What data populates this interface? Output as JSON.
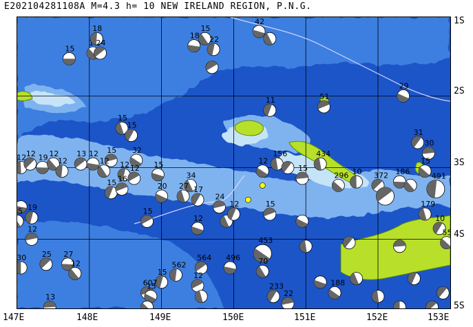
{
  "header": {
    "title": "E202104281108A M=4.3 h= 10 NEW IRELAND REGION, P.N.G."
  },
  "axes": {
    "latitudes": [
      "1S",
      "2S",
      "3S",
      "4S",
      "5S"
    ],
    "longitudes": [
      "147E",
      "148E",
      "149E",
      "150E",
      "151E",
      "152E",
      "153E"
    ]
  },
  "colors": {
    "deep_ocean": "#1c55c8",
    "ocean": "#3e7fe0",
    "shallow_ocean": "#7fb3f0",
    "shelf": "#c6e4f8",
    "land": "#b8e02a",
    "land_edge": "#5a8c00",
    "plate_boundary": "#d8d8ff",
    "compression": "#666666",
    "mechanism_fill": "#ffffff",
    "epicenter": "#ffff00"
  },
  "mechanisms": [
    {
      "lon": 147.72,
      "lat": -1.48,
      "label": "15",
      "large": false
    },
    {
      "lon": 148.05,
      "lat": -1.4,
      "label": "17",
      "large": false
    },
    {
      "lon": 148.1,
      "lat": -1.2,
      "label": "18",
      "large": false
    },
    {
      "lon": 148.15,
      "lat": -1.4,
      "label": "24",
      "large": false
    },
    {
      "lon": 149.45,
      "lat": -1.3,
      "label": "18",
      "large": false
    },
    {
      "lon": 149.6,
      "lat": -1.2,
      "label": "15",
      "large": false
    },
    {
      "lon": 149.72,
      "lat": -1.35,
      "label": "22",
      "large": false
    },
    {
      "lon": 149.7,
      "lat": -1.6,
      "label": "",
      "large": false
    },
    {
      "lon": 150.35,
      "lat": -1.1,
      "label": "42",
      "large": false
    },
    {
      "lon": 150.5,
      "lat": -1.2,
      "label": "",
      "large": false
    },
    {
      "lon": 150.5,
      "lat": -2.2,
      "label": "11",
      "large": false
    },
    {
      "lon": 151.25,
      "lat": -2.15,
      "label": "51",
      "large": false
    },
    {
      "lon": 152.35,
      "lat": -2.0,
      "label": "29",
      "large": false
    },
    {
      "lon": 148.45,
      "lat": -2.45,
      "label": "15",
      "large": false
    },
    {
      "lon": 148.58,
      "lat": -2.55,
      "label": "15",
      "large": false
    },
    {
      "lon": 148.3,
      "lat": -2.9,
      "label": "15",
      "large": false
    },
    {
      "lon": 148.65,
      "lat": -2.9,
      "label": "32",
      "large": false
    },
    {
      "lon": 151.2,
      "lat": -2.95,
      "label": "434",
      "large": false
    },
    {
      "lon": 152.55,
      "lat": -2.65,
      "label": "31",
      "large": false
    },
    {
      "lon": 152.7,
      "lat": -2.8,
      "label": "30",
      "large": false
    },
    {
      "lon": 152.65,
      "lat": -3.05,
      "label": "15",
      "large": false
    },
    {
      "lon": 147.05,
      "lat": -3.0,
      "label": "12",
      "large": false
    },
    {
      "lon": 147.18,
      "lat": -2.95,
      "label": "12",
      "large": false
    },
    {
      "lon": 147.35,
      "lat": -3.0,
      "label": "19",
      "large": false
    },
    {
      "lon": 147.5,
      "lat": -2.95,
      "label": "12",
      "large": false
    },
    {
      "lon": 147.62,
      "lat": -3.05,
      "label": "12",
      "large": false
    },
    {
      "lon": 147.88,
      "lat": -2.95,
      "label": "13",
      "large": false
    },
    {
      "lon": 148.05,
      "lat": -2.95,
      "label": "12",
      "large": false
    },
    {
      "lon": 148.2,
      "lat": -3.05,
      "label": "12",
      "large": false
    },
    {
      "lon": 148.48,
      "lat": -3.1,
      "label": "12",
      "large": false
    },
    {
      "lon": 148.62,
      "lat": -3.15,
      "label": "12",
      "large": false
    },
    {
      "lon": 148.95,
      "lat": -3.1,
      "label": "15",
      "large": false
    },
    {
      "lon": 149.4,
      "lat": -3.25,
      "label": "34",
      "large": false
    },
    {
      "lon": 148.3,
      "lat": -3.35,
      "label": "15",
      "large": false
    },
    {
      "lon": 148.45,
      "lat": -3.3,
      "label": "16",
      "large": false
    },
    {
      "lon": 149.0,
      "lat": -3.4,
      "label": "20",
      "large": false
    },
    {
      "lon": 149.3,
      "lat": -3.4,
      "label": "27",
      "large": false
    },
    {
      "lon": 149.5,
      "lat": -3.45,
      "label": "17",
      "large": false
    },
    {
      "lon": 149.8,
      "lat": -3.55,
      "label": "24",
      "large": false
    },
    {
      "lon": 150.4,
      "lat": -3.05,
      "label": "12",
      "large": false
    },
    {
      "lon": 150.6,
      "lat": -2.95,
      "label": "156",
      "large": false
    },
    {
      "lon": 150.75,
      "lat": -3.0,
      "label": "",
      "large": false
    },
    {
      "lon": 150.95,
      "lat": -3.15,
      "label": "15",
      "large": false
    },
    {
      "lon": 151.45,
      "lat": -3.25,
      "label": "296",
      "large": false
    },
    {
      "lon": 151.7,
      "lat": -3.2,
      "label": "10",
      "large": false
    },
    {
      "lon": 152.0,
      "lat": -3.25,
      "label": "372",
      "large": false
    },
    {
      "lon": 152.3,
      "lat": -3.2,
      "label": "186",
      "large": false
    },
    {
      "lon": 152.45,
      "lat": -3.25,
      "label": "",
      "large": false
    },
    {
      "lon": 152.8,
      "lat": -3.3,
      "label": "491",
      "large": true
    },
    {
      "lon": 152.1,
      "lat": -3.4,
      "label": "",
      "large": true
    },
    {
      "lon": 147.05,
      "lat": -3.55,
      "label": "",
      "large": false
    },
    {
      "lon": 147.0,
      "lat": -3.75,
      "label": "15",
      "large": false
    },
    {
      "lon": 147.2,
      "lat": -3.7,
      "label": "19",
      "large": false
    },
    {
      "lon": 148.8,
      "lat": -3.75,
      "label": "15",
      "large": false
    },
    {
      "lon": 149.5,
      "lat": -3.85,
      "label": "12",
      "large": false
    },
    {
      "lon": 149.9,
      "lat": -3.75,
      "label": "",
      "large": false
    },
    {
      "lon": 150.0,
      "lat": -3.65,
      "label": "12",
      "large": false
    },
    {
      "lon": 150.5,
      "lat": -3.65,
      "label": "15",
      "large": false
    },
    {
      "lon": 150.95,
      "lat": -3.75,
      "label": "",
      "large": false
    },
    {
      "lon": 152.65,
      "lat": -3.65,
      "label": "179",
      "large": false
    },
    {
      "lon": 152.85,
      "lat": -3.85,
      "label": "10",
      "large": false
    },
    {
      "lon": 147.2,
      "lat": -4.0,
      "label": "12",
      "large": false
    },
    {
      "lon": 150.4,
      "lat": -4.2,
      "label": "453",
      "large": true
    },
    {
      "lon": 151.0,
      "lat": -4.1,
      "label": "",
      "large": false
    },
    {
      "lon": 151.6,
      "lat": -4.05,
      "label": "",
      "large": false
    },
    {
      "lon": 152.3,
      "lat": -4.1,
      "label": "",
      "large": false
    },
    {
      "lon": 152.95,
      "lat": -4.05,
      "label": "55",
      "large": false
    },
    {
      "lon": 147.05,
      "lat": -4.4,
      "label": "30",
      "large": false
    },
    {
      "lon": 147.4,
      "lat": -4.35,
      "label": "25",
      "large": false
    },
    {
      "lon": 147.7,
      "lat": -4.35,
      "label": "27",
      "large": false
    },
    {
      "lon": 147.8,
      "lat": -4.48,
      "label": "12",
      "large": false
    },
    {
      "lon": 149.2,
      "lat": -4.5,
      "label": "562",
      "large": false
    },
    {
      "lon": 149.55,
      "lat": -4.4,
      "label": "564",
      "large": false
    },
    {
      "lon": 149.95,
      "lat": -4.4,
      "label": "496",
      "large": false
    },
    {
      "lon": 150.4,
      "lat": -4.45,
      "label": "70",
      "large": false
    },
    {
      "lon": 149.0,
      "lat": -4.6,
      "label": "15",
      "large": false
    },
    {
      "lon": 149.5,
      "lat": -4.65,
      "label": "12",
      "large": false
    },
    {
      "lon": 151.2,
      "lat": -4.6,
      "label": "",
      "large": false
    },
    {
      "lon": 151.7,
      "lat": -4.55,
      "label": "",
      "large": false
    },
    {
      "lon": 152.5,
      "lat": -4.55,
      "label": "",
      "large": false
    },
    {
      "lon": 148.8,
      "lat": -4.75,
      "label": "607",
      "large": false
    },
    {
      "lon": 148.85,
      "lat": -4.8,
      "label": "15",
      "large": false
    },
    {
      "lon": 149.55,
      "lat": -4.8,
      "label": "",
      "large": false
    },
    {
      "lon": 150.55,
      "lat": -4.8,
      "label": "233",
      "large": false
    },
    {
      "lon": 150.75,
      "lat": -4.9,
      "label": "22",
      "large": false
    },
    {
      "lon": 151.4,
      "lat": -4.75,
      "label": "188",
      "large": false
    },
    {
      "lon": 152.0,
      "lat": -4.8,
      "label": "",
      "large": false
    },
    {
      "lon": 152.9,
      "lat": -4.75,
      "label": "",
      "large": false
    },
    {
      "lon": 147.45,
      "lat": -4.95,
      "label": "13",
      "large": false
    },
    {
      "lon": 148.8,
      "lat": -4.95,
      "label": "",
      "large": false
    },
    {
      "lon": 152.3,
      "lat": -4.95,
      "label": "",
      "large": false
    },
    {
      "lon": 152.75,
      "lat": -4.95,
      "label": "",
      "large": false
    }
  ],
  "epicenters": [
    {
      "lon": 150.4,
      "lat": -3.25
    },
    {
      "lon": 150.2,
      "lat": -3.45
    }
  ]
}
